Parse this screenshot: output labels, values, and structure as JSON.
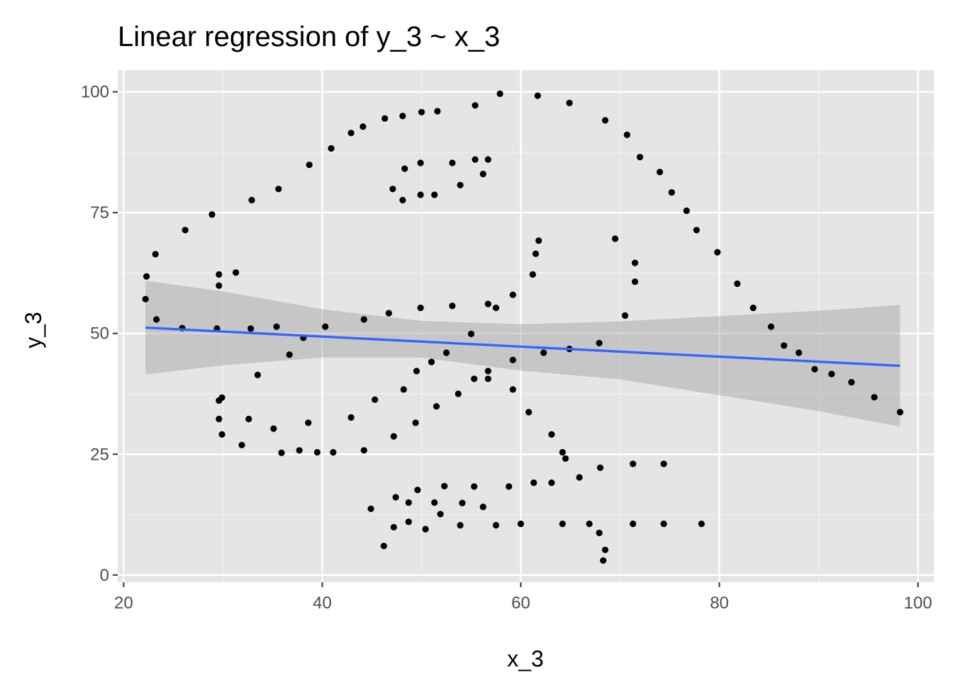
{
  "chart_data": {
    "type": "scatter",
    "title": "Linear regression of y_3 ~ x_3",
    "xlabel": "x_3",
    "ylabel": "y_3",
    "xlim": [
      19.4,
      101.6
    ],
    "ylim": [
      -1.5,
      104.5
    ],
    "x_ticks": [
      20,
      40,
      60,
      80,
      100
    ],
    "x_tick_labels": [
      "20",
      "40",
      "60",
      "80",
      "100"
    ],
    "y_ticks": [
      0,
      25,
      50,
      75,
      100
    ],
    "y_tick_labels": [
      "0",
      "25",
      "50",
      "75",
      "100"
    ],
    "x_minor_ticks": [
      30,
      50,
      70,
      90
    ],
    "y_minor_ticks": [
      12.5,
      37.5,
      62.5,
      87.5
    ],
    "grid": true,
    "legend": "none",
    "colors": {
      "panel_background": "#e5e5e5",
      "grid_major": "#ffffff",
      "grid_minor": "#f2f2f2",
      "points": "#000000",
      "regression_line": "#3366ff",
      "confidence_band": "#999999"
    },
    "points": [
      [
        22.3,
        61.8
      ],
      [
        23.2,
        66.4
      ],
      [
        26.2,
        71.4
      ],
      [
        28.9,
        74.6
      ],
      [
        32.9,
        77.6
      ],
      [
        35.6,
        79.9
      ],
      [
        38.7,
        84.9
      ],
      [
        40.9,
        88.3
      ],
      [
        42.9,
        91.5
      ],
      [
        44.1,
        92.8
      ],
      [
        46.3,
        94.5
      ],
      [
        48.1,
        95.0
      ],
      [
        50.0,
        95.8
      ],
      [
        51.6,
        96.0
      ],
      [
        55.4,
        97.2
      ],
      [
        57.9,
        99.6
      ],
      [
        61.7,
        99.2
      ],
      [
        64.9,
        97.7
      ],
      [
        68.5,
        94.1
      ],
      [
        70.7,
        91.1
      ],
      [
        72.0,
        86.5
      ],
      [
        74.0,
        83.4
      ],
      [
        75.2,
        79.2
      ],
      [
        76.7,
        75.4
      ],
      [
        77.7,
        71.4
      ],
      [
        79.8,
        66.8
      ],
      [
        81.8,
        60.3
      ],
      [
        83.4,
        55.3
      ],
      [
        85.2,
        51.4
      ],
      [
        86.5,
        47.5
      ],
      [
        88.0,
        46.0
      ],
      [
        89.6,
        42.6
      ],
      [
        91.3,
        41.6
      ],
      [
        93.3,
        39.9
      ],
      [
        95.6,
        36.8
      ],
      [
        98.2,
        33.7
      ],
      [
        22.2,
        57.1
      ],
      [
        23.3,
        52.9
      ],
      [
        25.9,
        51.1
      ],
      [
        29.4,
        51.0
      ],
      [
        29.6,
        62.2
      ],
      [
        29.6,
        59.9
      ],
      [
        31.3,
        62.6
      ],
      [
        32.8,
        51.0
      ],
      [
        35.4,
        51.4
      ],
      [
        33.5,
        41.4
      ],
      [
        36.7,
        45.6
      ],
      [
        38.1,
        49.1
      ],
      [
        40.3,
        51.4
      ],
      [
        44.2,
        52.9
      ],
      [
        46.7,
        54.2
      ],
      [
        49.9,
        55.3
      ],
      [
        53.1,
        55.7
      ],
      [
        55.0,
        49.9
      ],
      [
        29.6,
        36.1
      ],
      [
        29.9,
        36.7
      ],
      [
        29.6,
        32.3
      ],
      [
        29.9,
        29.1
      ],
      [
        31.9,
        26.9
      ],
      [
        32.6,
        32.3
      ],
      [
        35.1,
        30.3
      ],
      [
        35.9,
        25.3
      ],
      [
        37.7,
        25.8
      ],
      [
        38.6,
        31.5
      ],
      [
        39.5,
        25.4
      ],
      [
        41.1,
        25.4
      ],
      [
        44.2,
        25.8
      ],
      [
        42.9,
        32.6
      ],
      [
        45.3,
        36.3
      ],
      [
        47.2,
        28.7
      ],
      [
        48.2,
        38.4
      ],
      [
        49.4,
        31.5
      ],
      [
        49.5,
        42.2
      ],
      [
        51.0,
        44.1
      ],
      [
        51.5,
        34.9
      ],
      [
        52.5,
        46.0
      ],
      [
        53.7,
        37.5
      ],
      [
        55.3,
        40.6
      ],
      [
        56.7,
        40.6
      ],
      [
        56.7,
        42.2
      ],
      [
        56.7,
        56.1
      ],
      [
        57.5,
        55.3
      ],
      [
        59.2,
        58.0
      ],
      [
        59.2,
        44.5
      ],
      [
        59.2,
        38.4
      ],
      [
        60.8,
        33.7
      ],
      [
        61.2,
        62.2
      ],
      [
        61.5,
        66.5
      ],
      [
        61.8,
        69.2
      ],
      [
        62.3,
        46.0
      ],
      [
        63.1,
        29.1
      ],
      [
        64.2,
        25.4
      ],
      [
        64.5,
        24.1
      ],
      [
        64.9,
        46.8
      ],
      [
        67.9,
        48.0
      ],
      [
        69.5,
        69.6
      ],
      [
        70.5,
        53.7
      ],
      [
        71.5,
        64.6
      ],
      [
        71.5,
        60.7
      ],
      [
        47.1,
        79.9
      ],
      [
        48.1,
        77.6
      ],
      [
        48.3,
        84.1
      ],
      [
        49.9,
        85.3
      ],
      [
        49.9,
        78.7
      ],
      [
        51.3,
        78.7
      ],
      [
        53.1,
        85.3
      ],
      [
        53.9,
        80.7
      ],
      [
        55.4,
        86.0
      ],
      [
        56.2,
        83.0
      ],
      [
        56.7,
        86.0
      ],
      [
        46.2,
        6.0
      ],
      [
        47.2,
        9.9
      ],
      [
        47.4,
        16.1
      ],
      [
        44.9,
        13.7
      ],
      [
        48.7,
        11.0
      ],
      [
        48.7,
        15.0
      ],
      [
        49.6,
        17.6
      ],
      [
        50.4,
        9.5
      ],
      [
        51.3,
        15.0
      ],
      [
        51.9,
        12.6
      ],
      [
        52.3,
        18.4
      ],
      [
        53.9,
        10.3
      ],
      [
        54.1,
        14.9
      ],
      [
        55.3,
        18.3
      ],
      [
        56.2,
        14.1
      ],
      [
        57.5,
        10.3
      ],
      [
        58.8,
        18.3
      ],
      [
        60.0,
        10.6
      ],
      [
        61.3,
        19.1
      ],
      [
        63.1,
        19.1
      ],
      [
        64.2,
        10.6
      ],
      [
        65.9,
        20.2
      ],
      [
        66.9,
        10.6
      ],
      [
        67.9,
        8.7
      ],
      [
        68.0,
        22.2
      ],
      [
        68.5,
        5.2
      ],
      [
        68.3,
        3.0
      ],
      [
        71.3,
        10.6
      ],
      [
        71.3,
        23.0
      ],
      [
        74.4,
        10.6
      ],
      [
        74.4,
        23.0
      ],
      [
        78.2,
        10.6
      ]
    ],
    "regression": {
      "x_range": [
        22.2,
        98.2
      ],
      "y_range": [
        51.2,
        43.3
      ],
      "band": [
        {
          "x": 22.2,
          "lower": 41.5,
          "upper": 60.9
        },
        {
          "x": 30.0,
          "lower": 43.4,
          "upper": 58.7
        },
        {
          "x": 40.0,
          "lower": 45.0,
          "upper": 55.0
        },
        {
          "x": 50.0,
          "lower": 45.0,
          "upper": 52.6
        },
        {
          "x": 60.0,
          "lower": 42.3,
          "upper": 51.9
        },
        {
          "x": 70.0,
          "lower": 40.5,
          "upper": 52.5
        },
        {
          "x": 80.0,
          "lower": 37.2,
          "upper": 53.6
        },
        {
          "x": 90.0,
          "lower": 33.9,
          "upper": 54.7
        },
        {
          "x": 98.2,
          "lower": 30.7,
          "upper": 55.9
        }
      ]
    }
  }
}
